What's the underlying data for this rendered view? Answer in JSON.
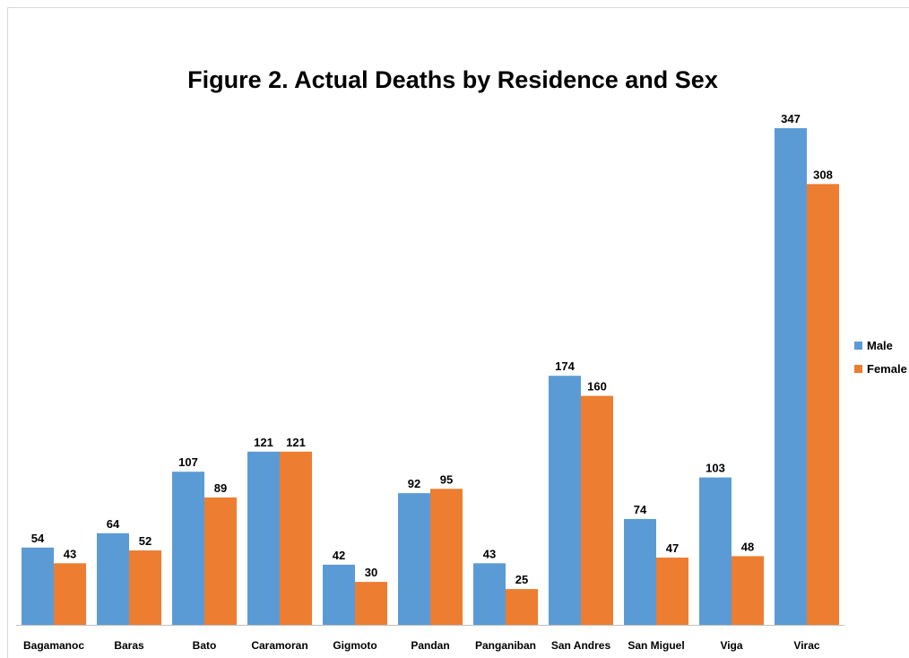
{
  "chart_data": {
    "type": "bar",
    "title": "Figure 2. Actual Deaths by Residence and Sex",
    "categories": [
      "Bagamanoc",
      "Baras",
      "Bato",
      "Caramoran",
      "Gigmoto",
      "Pandan",
      "Panganiban",
      "San Andres",
      "San Miguel",
      "Viga",
      "Virac"
    ],
    "series": [
      {
        "name": "Male",
        "color": "#5b9bd5",
        "values": [
          54,
          64,
          107,
          121,
          42,
          92,
          43,
          174,
          74,
          103,
          347
        ]
      },
      {
        "name": "Female",
        "color": "#ed7d31",
        "values": [
          43,
          52,
          89,
          121,
          30,
          95,
          25,
          160,
          47,
          48,
          308
        ]
      }
    ],
    "xlabel": "",
    "ylabel": "",
    "ylim": [
      0,
      347
    ],
    "grid": false,
    "data_labels": true,
    "legend_position": "right"
  }
}
